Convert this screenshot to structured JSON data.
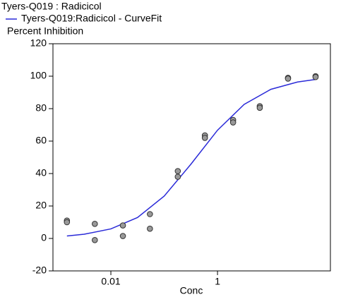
{
  "chart_data": {
    "type": "scatter",
    "title": "Tyers-Q019  : Radicicol",
    "y_label": "Percent Inhibition",
    "x_label": "Conc",
    "log_x": true,
    "xlim": [
      0.00082,
      131
    ],
    "ylim": [
      -20,
      120
    ],
    "xticks": [
      0.01,
      1
    ],
    "yticks": [
      -20,
      0,
      20,
      40,
      60,
      80,
      100,
      120
    ],
    "points": {
      "color": "#999999",
      "x": [
        0.0015,
        0.0015,
        0.005,
        0.005,
        0.0168,
        0.0168,
        0.054,
        0.054,
        0.18,
        0.18,
        0.58,
        0.58,
        1.96,
        1.96,
        6.2,
        6.2,
        21,
        21,
        69,
        69
      ],
      "values": [
        11,
        10,
        9,
        -1,
        8,
        1.5,
        15,
        6,
        41.5,
        38,
        63.5,
        62,
        73,
        71.5,
        81.5,
        80.5,
        99,
        98.5,
        100,
        99.5
      ]
    },
    "series": [
      {
        "name": "Tyers-Q019:Radicicol - CurveFit",
        "color": "#2a2ad8",
        "x": [
          0.0015,
          0.00316,
          0.01,
          0.0316,
          0.1,
          0.316,
          1,
          3.16,
          10,
          31.6,
          69
        ],
        "values": [
          1.5,
          2.6,
          5.9,
          12.9,
          26.1,
          45.7,
          66.7,
          82.6,
          91.9,
          96.4,
          98.0
        ]
      }
    ]
  }
}
